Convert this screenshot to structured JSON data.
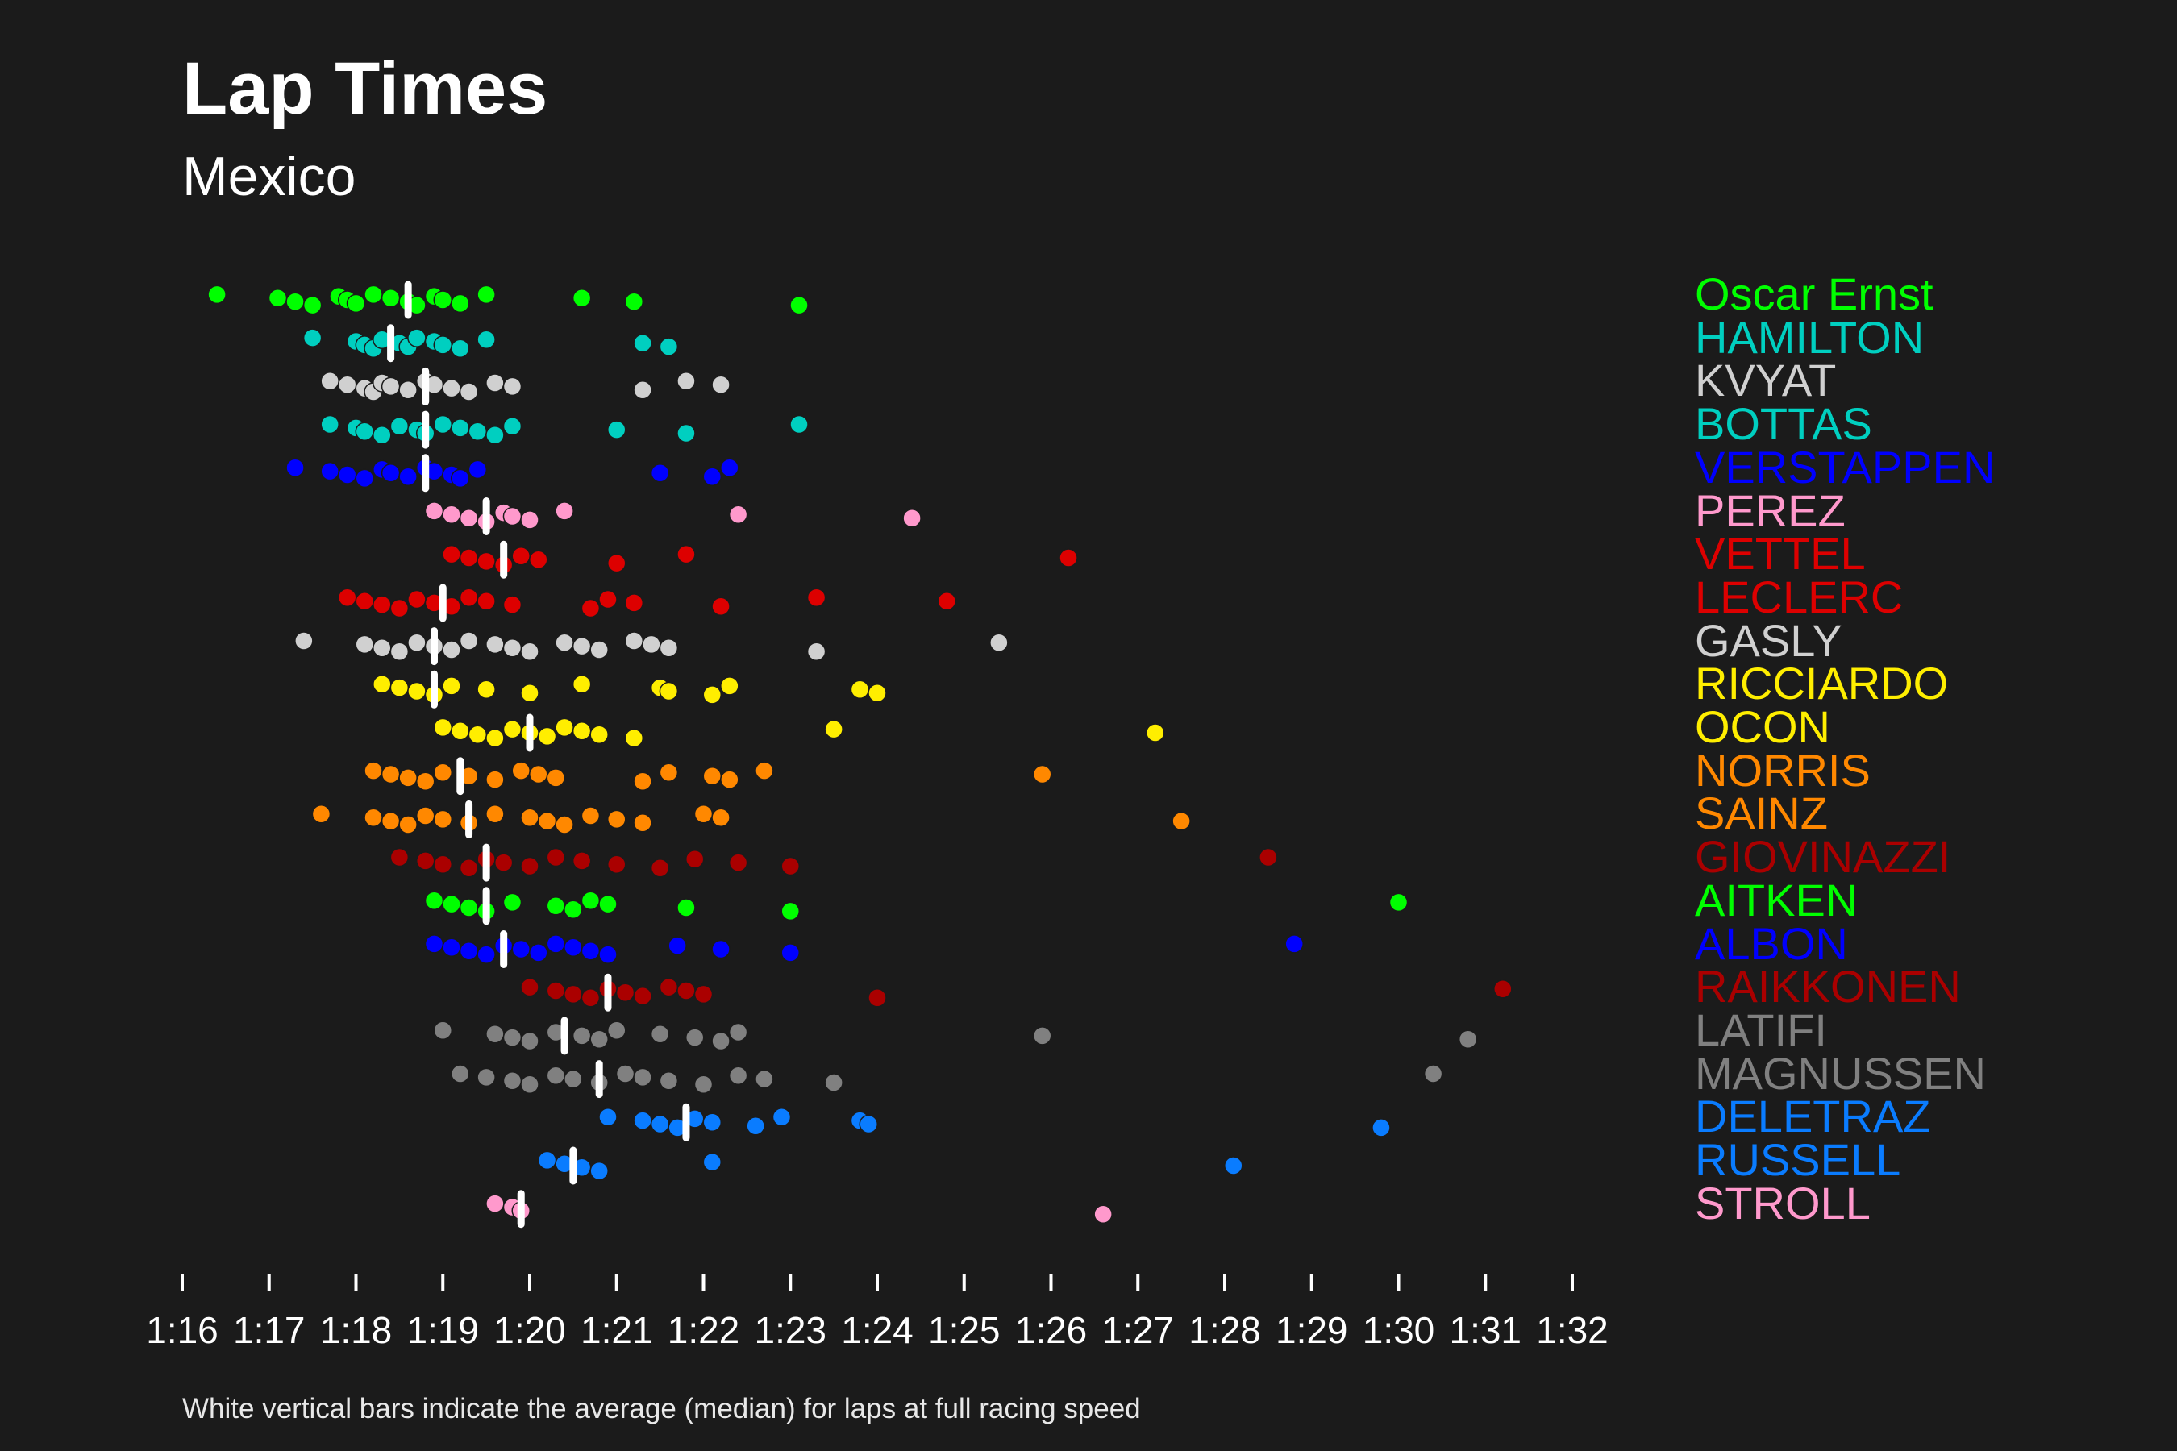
{
  "title": "Lap Times",
  "subtitle": "Mexico",
  "footnote": "White vertical bars indicate the average (median) for laps at full racing speed",
  "chart_data": {
    "type": "scatter",
    "xlim": [
      76,
      92
    ],
    "x_tick_labels": [
      "1:16",
      "1:17",
      "1:18",
      "1:19",
      "1:20",
      "1:21",
      "1:22",
      "1:23",
      "1:24",
      "1:25",
      "1:26",
      "1:27",
      "1:28",
      "1:29",
      "1:30",
      "1:31",
      "1:32"
    ],
    "x_tick_values": [
      76,
      77,
      78,
      79,
      80,
      81,
      82,
      83,
      84,
      85,
      86,
      87,
      88,
      89,
      90,
      91,
      92
    ],
    "median_color": "#ffffff",
    "series": [
      {
        "name": "Oscar Ernst",
        "color": "#00ff00",
        "median": 78.6,
        "laps": [
          76.4,
          77.1,
          77.3,
          77.5,
          77.8,
          77.9,
          78.0,
          78.2,
          78.4,
          78.6,
          78.7,
          78.9,
          79.0,
          79.2,
          79.5,
          80.6,
          81.2,
          83.1
        ]
      },
      {
        "name": "HAMILTON",
        "color": "#00cfc0",
        "median": 78.4,
        "laps": [
          77.5,
          78.0,
          78.1,
          78.2,
          78.3,
          78.5,
          78.6,
          78.7,
          78.9,
          79.0,
          79.2,
          79.5,
          81.3,
          81.6
        ]
      },
      {
        "name": "KVYAT",
        "color": "#d0d0d0",
        "median": 78.8,
        "laps": [
          77.7,
          77.9,
          78.1,
          78.2,
          78.3,
          78.4,
          78.6,
          78.8,
          78.9,
          79.1,
          79.3,
          79.6,
          79.8,
          81.3,
          81.8,
          82.2
        ]
      },
      {
        "name": "BOTTAS",
        "color": "#00cfc0",
        "median": 78.8,
        "laps": [
          77.7,
          78.0,
          78.1,
          78.3,
          78.5,
          78.7,
          78.8,
          79.0,
          79.2,
          79.4,
          79.6,
          79.8,
          81.0,
          81.8,
          83.1
        ]
      },
      {
        "name": "VERSTAPPEN",
        "color": "#0000ff",
        "median": 78.8,
        "laps": [
          77.3,
          77.7,
          77.9,
          78.1,
          78.3,
          78.4,
          78.6,
          78.8,
          78.9,
          79.1,
          79.2,
          79.4,
          81.5,
          82.1,
          82.3
        ]
      },
      {
        "name": "PEREZ",
        "color": "#ff99cc",
        "median": 79.5,
        "laps": [
          78.9,
          79.1,
          79.3,
          79.5,
          79.7,
          79.8,
          80.0,
          80.4,
          82.4,
          84.4
        ]
      },
      {
        "name": "VETTEL",
        "color": "#dd0000",
        "median": 79.7,
        "laps": [
          79.1,
          79.3,
          79.5,
          79.7,
          79.9,
          80.1,
          81.0,
          81.8,
          86.2
        ]
      },
      {
        "name": "LECLERC",
        "color": "#dd0000",
        "median": 79.0,
        "laps": [
          77.9,
          78.1,
          78.3,
          78.5,
          78.7,
          78.9,
          79.1,
          79.3,
          79.5,
          79.8,
          80.7,
          80.9,
          81.2,
          82.2,
          83.3,
          84.8
        ]
      },
      {
        "name": "GASLY",
        "color": "#d0d0d0",
        "median": 78.9,
        "laps": [
          77.4,
          78.1,
          78.3,
          78.5,
          78.7,
          78.9,
          79.1,
          79.3,
          79.6,
          79.8,
          80.0,
          80.4,
          80.6,
          80.8,
          81.2,
          81.4,
          81.6,
          83.3,
          85.4
        ]
      },
      {
        "name": "RICCIARDO",
        "color": "#ffee00",
        "median": 78.9,
        "laps": [
          78.3,
          78.5,
          78.7,
          78.9,
          79.1,
          79.5,
          80.0,
          80.6,
          81.5,
          81.6,
          82.1,
          82.3,
          83.8,
          84.0
        ]
      },
      {
        "name": "OCON",
        "color": "#ffee00",
        "median": 80.0,
        "laps": [
          79.0,
          79.2,
          79.4,
          79.6,
          79.8,
          80.0,
          80.2,
          80.4,
          80.6,
          80.8,
          81.2,
          83.5,
          87.2
        ]
      },
      {
        "name": "NORRIS",
        "color": "#ff8800",
        "median": 79.2,
        "laps": [
          78.2,
          78.4,
          78.6,
          78.8,
          79.0,
          79.3,
          79.6,
          79.9,
          80.1,
          80.3,
          81.3,
          81.6,
          82.1,
          82.3,
          82.7,
          85.9
        ]
      },
      {
        "name": "SAINZ",
        "color": "#ff8800",
        "median": 79.3,
        "laps": [
          77.6,
          78.2,
          78.4,
          78.6,
          78.8,
          79.0,
          79.3,
          79.6,
          80.0,
          80.2,
          80.4,
          80.7,
          81.0,
          81.3,
          82.0,
          82.2,
          87.5
        ]
      },
      {
        "name": "GIOVINAZZI",
        "color": "#aa0000",
        "median": 79.5,
        "laps": [
          78.5,
          78.8,
          79.0,
          79.3,
          79.5,
          79.7,
          80.0,
          80.3,
          80.6,
          81.0,
          81.5,
          81.9,
          82.4,
          83.0,
          88.5
        ]
      },
      {
        "name": "AITKEN",
        "color": "#00ff00",
        "median": 79.5,
        "laps": [
          78.9,
          79.1,
          79.3,
          79.5,
          79.8,
          80.3,
          80.5,
          80.7,
          80.9,
          81.8,
          83.0,
          90.0
        ]
      },
      {
        "name": "ALBON",
        "color": "#0000ff",
        "median": 79.7,
        "laps": [
          78.9,
          79.1,
          79.3,
          79.5,
          79.7,
          79.9,
          80.1,
          80.3,
          80.5,
          80.7,
          80.9,
          81.7,
          82.2,
          83.0,
          88.8
        ]
      },
      {
        "name": "RAIKKONEN",
        "color": "#aa0000",
        "median": 80.9,
        "laps": [
          80.0,
          80.3,
          80.5,
          80.7,
          80.9,
          81.1,
          81.3,
          81.6,
          81.8,
          82.0,
          84.0,
          91.2
        ]
      },
      {
        "name": "LATIFI",
        "color": "#808080",
        "median": 80.4,
        "laps": [
          79.0,
          79.6,
          79.8,
          80.0,
          80.3,
          80.6,
          80.8,
          81.0,
          81.5,
          81.9,
          82.2,
          82.4,
          85.9,
          90.8
        ]
      },
      {
        "name": "MAGNUSSEN",
        "color": "#808080",
        "median": 80.8,
        "laps": [
          79.2,
          79.5,
          79.8,
          80.0,
          80.3,
          80.5,
          80.8,
          81.1,
          81.3,
          81.6,
          82.0,
          82.4,
          82.7,
          83.5,
          90.4
        ]
      },
      {
        "name": "DELETRAZ",
        "color": "#0a7cff",
        "median": 81.8,
        "laps": [
          80.9,
          81.3,
          81.5,
          81.7,
          81.9,
          82.1,
          82.6,
          82.9,
          83.8,
          83.9,
          89.8
        ]
      },
      {
        "name": "RUSSELL",
        "color": "#0a7cff",
        "median": 80.5,
        "laps": [
          80.2,
          80.4,
          80.6,
          80.8,
          82.1,
          88.1
        ]
      },
      {
        "name": "STROLL",
        "color": "#ff99cc",
        "median": 79.9,
        "laps": [
          79.6,
          79.8,
          79.9,
          86.6
        ]
      }
    ]
  }
}
